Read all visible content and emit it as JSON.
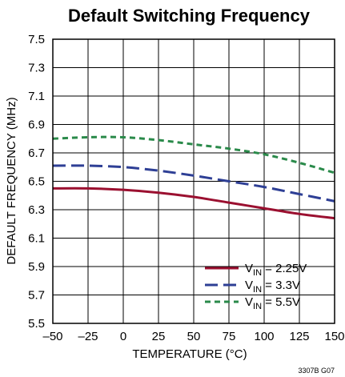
{
  "chart_data": {
    "type": "line",
    "title": "Default Switching Frequency",
    "xlabel": "TEMPERATURE (°C)",
    "ylabel": "DEFAULT FREQUENCY (MHz)",
    "xlim": [
      -50,
      150
    ],
    "ylim": [
      5.5,
      7.5
    ],
    "x_ticks": [
      "–50",
      "–25",
      "0",
      "25",
      "50",
      "75",
      "100",
      "125",
      "150"
    ],
    "y_ticks": [
      "5.5",
      "5.7",
      "5.9",
      "6.1",
      "6.3",
      "6.5",
      "6.7",
      "6.9",
      "7.1",
      "7.3",
      "7.5"
    ],
    "grid": true,
    "legend_position": "bottom-right",
    "series": [
      {
        "name": "VIN = 2.25V",
        "legend": {
          "main": "V",
          "sub": "IN",
          "rest": " = 2.25V"
        },
        "color": "#9b1030",
        "dash": "solid",
        "x": [
          -50,
          -25,
          0,
          25,
          50,
          75,
          100,
          125,
          150
        ],
        "y": [
          6.45,
          6.45,
          6.44,
          6.42,
          6.39,
          6.35,
          6.31,
          6.27,
          6.24
        ]
      },
      {
        "name": "VIN = 3.3V",
        "legend": {
          "main": "V",
          "sub": "IN",
          "rest": " = 3.3V"
        },
        "color": "#2e3f95",
        "dash": "long-dash",
        "x": [
          -50,
          -25,
          0,
          25,
          50,
          75,
          100,
          125,
          150
        ],
        "y": [
          6.61,
          6.61,
          6.6,
          6.575,
          6.54,
          6.5,
          6.46,
          6.41,
          6.36
        ]
      },
      {
        "name": "VIN = 5.5V",
        "legend": {
          "main": "V",
          "sub": "IN",
          "rest": " = 5.5V"
        },
        "color": "#2a8a4a",
        "dash": "short-dash",
        "x": [
          -50,
          -25,
          0,
          25,
          50,
          75,
          100,
          125,
          150
        ],
        "y": [
          6.8,
          6.81,
          6.81,
          6.79,
          6.76,
          6.73,
          6.69,
          6.63,
          6.56
        ]
      }
    ]
  },
  "figure_code": "3307B G07"
}
